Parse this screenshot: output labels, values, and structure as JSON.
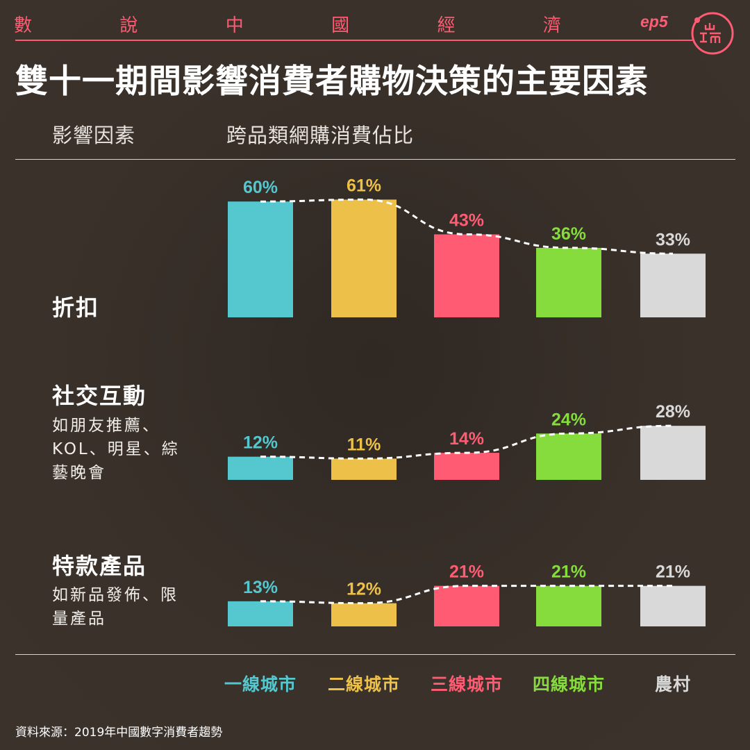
{
  "header": {
    "series_chars": [
      "數",
      "說",
      "中",
      "國",
      "經",
      "濟"
    ],
    "episode": "ep5",
    "title": "雙十一期間影響消費者購物決策的主要因素",
    "col_factor": "影響因素",
    "col_share": "跨品類網購消費佔比"
  },
  "colors": {
    "accent": "#ff5c74",
    "tier1": "#55c7cf",
    "tier2": "#edc149",
    "tier3": "#ff5c74",
    "tier4": "#86dc3c",
    "rural": "#d9d9d9"
  },
  "chart_data": {
    "type": "bar",
    "unit": "%",
    "categories": [
      "一線城市",
      "二線城市",
      "三線城市",
      "四線城市",
      "農村"
    ],
    "groups": [
      {
        "name": "折扣",
        "note": "",
        "values": [
          60,
          61,
          43,
          36,
          33
        ]
      },
      {
        "name": "社交互動",
        "note": "如朋友推薦、KOL、明星、綜藝晚會",
        "values": [
          12,
          11,
          14,
          24,
          28
        ]
      },
      {
        "name": "特款產品",
        "note": "如新品發佈、限量產品",
        "values": [
          13,
          12,
          21,
          21,
          21
        ]
      }
    ]
  },
  "footer": {
    "source": "資料來源：2019年中國數字消費者趨勢"
  }
}
